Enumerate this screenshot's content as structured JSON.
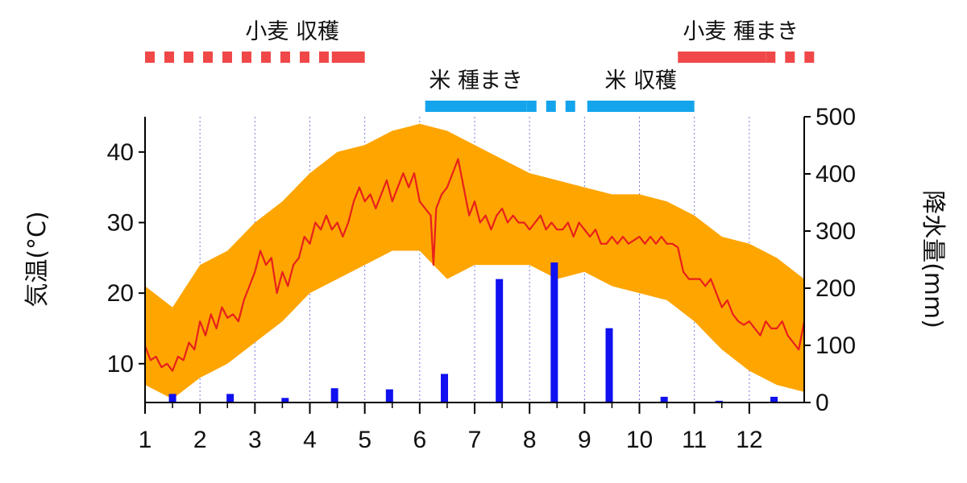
{
  "chart_data": {
    "type": "line",
    "x_categories": [
      "1",
      "2",
      "3",
      "4",
      "5",
      "6",
      "7",
      "8",
      "9",
      "10",
      "11",
      "12"
    ],
    "xlim": [
      1,
      13
    ],
    "y_left": {
      "label": "気温(°C)",
      "ticks": [
        10,
        20,
        30,
        40
      ],
      "ylim": [
        4.5,
        45
      ]
    },
    "y_right": {
      "label": "降水量(mm)",
      "ticks": [
        0,
        100,
        200,
        300,
        400,
        500
      ],
      "ylim": [
        0,
        500
      ]
    },
    "grid": {
      "vertical_dotted_at_months": true
    },
    "colors": {
      "temperature": "#e8201c",
      "range": "#ffa500",
      "precipitation": "#1010f0",
      "wheat": "#f04848",
      "rice": "#14a4ec"
    },
    "series": [
      {
        "type": "line",
        "temperature_mean": [
          [
            1,
            12.5
          ],
          [
            1.1,
            10.5
          ],
          [
            1.2,
            11
          ],
          [
            1.3,
            9.5
          ],
          [
            1.4,
            10
          ],
          [
            1.5,
            9
          ],
          [
            1.6,
            11
          ],
          [
            1.7,
            10.5
          ],
          [
            1.8,
            13
          ],
          [
            1.9,
            12
          ],
          [
            2,
            16
          ],
          [
            2.1,
            14
          ],
          [
            2.2,
            17
          ],
          [
            2.3,
            15
          ],
          [
            2.4,
            18
          ],
          [
            2.5,
            16.5
          ],
          [
            2.6,
            17
          ],
          [
            2.7,
            16
          ],
          [
            2.8,
            19
          ],
          [
            2.9,
            21
          ],
          [
            3,
            23
          ],
          [
            3.1,
            26
          ],
          [
            3.2,
            24
          ],
          [
            3.3,
            25
          ],
          [
            3.4,
            20
          ],
          [
            3.5,
            23
          ],
          [
            3.6,
            21
          ],
          [
            3.7,
            24
          ],
          [
            3.8,
            25
          ],
          [
            3.9,
            28
          ],
          [
            4,
            27
          ],
          [
            4.1,
            30
          ],
          [
            4.2,
            29
          ],
          [
            4.3,
            31
          ],
          [
            4.4,
            29
          ],
          [
            4.5,
            30
          ],
          [
            4.6,
            28
          ],
          [
            4.7,
            30
          ],
          [
            4.8,
            33
          ],
          [
            4.9,
            35
          ],
          [
            5,
            33
          ],
          [
            5.1,
            34
          ],
          [
            5.2,
            32
          ],
          [
            5.3,
            34
          ],
          [
            5.4,
            36
          ],
          [
            5.5,
            33
          ],
          [
            5.6,
            35
          ],
          [
            5.7,
            37
          ],
          [
            5.8,
            35
          ],
          [
            5.9,
            37
          ],
          [
            6,
            33
          ],
          [
            6.1,
            32
          ],
          [
            6.2,
            31
          ],
          [
            6.25,
            24
          ],
          [
            6.3,
            32
          ],
          [
            6.4,
            34
          ],
          [
            6.5,
            35
          ],
          [
            6.6,
            37
          ],
          [
            6.7,
            39
          ],
          [
            6.8,
            35
          ],
          [
            6.9,
            31
          ],
          [
            7,
            33
          ],
          [
            7.1,
            30
          ],
          [
            7.2,
            31
          ],
          [
            7.3,
            29
          ],
          [
            7.4,
            31
          ],
          [
            7.5,
            32
          ],
          [
            7.6,
            30
          ],
          [
            7.7,
            31
          ],
          [
            7.8,
            30
          ],
          [
            7.9,
            30
          ],
          [
            8,
            29
          ],
          [
            8.1,
            30
          ],
          [
            8.2,
            31
          ],
          [
            8.3,
            29
          ],
          [
            8.4,
            30
          ],
          [
            8.5,
            29
          ],
          [
            8.6,
            29
          ],
          [
            8.7,
            30
          ],
          [
            8.8,
            28
          ],
          [
            8.9,
            30
          ],
          [
            9,
            29
          ],
          [
            9.1,
            28
          ],
          [
            9.2,
            29
          ],
          [
            9.3,
            27
          ],
          [
            9.4,
            27
          ],
          [
            9.5,
            28
          ],
          [
            9.6,
            27
          ],
          [
            9.7,
            28
          ],
          [
            9.8,
            27
          ],
          [
            9.9,
            27.5
          ],
          [
            10,
            28
          ],
          [
            10.1,
            27
          ],
          [
            10.2,
            28
          ],
          [
            10.3,
            27
          ],
          [
            10.4,
            28
          ],
          [
            10.5,
            27
          ],
          [
            10.6,
            27
          ],
          [
            10.7,
            26.5
          ],
          [
            10.8,
            23
          ],
          [
            10.9,
            22
          ],
          [
            11,
            22
          ],
          [
            11.1,
            22
          ],
          [
            11.2,
            21
          ],
          [
            11.3,
            22
          ],
          [
            11.4,
            20
          ],
          [
            11.5,
            18
          ],
          [
            11.6,
            19
          ],
          [
            11.7,
            17
          ],
          [
            11.8,
            16
          ],
          [
            11.9,
            15.5
          ],
          [
            12,
            16
          ],
          [
            12.1,
            15
          ],
          [
            12.2,
            14
          ],
          [
            12.3,
            16
          ],
          [
            12.4,
            15
          ],
          [
            12.5,
            15
          ],
          [
            12.6,
            16
          ],
          [
            12.7,
            14
          ],
          [
            12.8,
            13
          ],
          [
            12.9,
            12
          ],
          [
            13,
            16
          ]
        ],
        "temperature_max": [
          [
            1,
            21
          ],
          [
            1.5,
            18
          ],
          [
            2,
            24
          ],
          [
            2.5,
            26
          ],
          [
            3,
            30
          ],
          [
            3.5,
            33
          ],
          [
            4,
            37
          ],
          [
            4.5,
            40
          ],
          [
            5,
            41
          ],
          [
            5.5,
            43
          ],
          [
            6,
            44
          ],
          [
            6.5,
            43
          ],
          [
            7,
            41
          ],
          [
            7.5,
            39
          ],
          [
            8,
            37
          ],
          [
            8.5,
            36
          ],
          [
            9,
            35
          ],
          [
            9.5,
            34
          ],
          [
            10,
            34
          ],
          [
            10.5,
            33
          ],
          [
            11,
            31
          ],
          [
            11.5,
            28
          ],
          [
            12,
            27
          ],
          [
            12.5,
            25
          ],
          [
            13,
            22
          ]
        ],
        "temperature_min": [
          [
            1,
            7
          ],
          [
            1.5,
            5
          ],
          [
            2,
            8
          ],
          [
            2.5,
            10
          ],
          [
            3,
            13
          ],
          [
            3.5,
            16
          ],
          [
            4,
            20
          ],
          [
            4.5,
            22
          ],
          [
            5,
            24
          ],
          [
            5.5,
            26
          ],
          [
            6,
            26
          ],
          [
            6.5,
            22
          ],
          [
            7,
            24
          ],
          [
            7.5,
            24
          ],
          [
            8,
            24
          ],
          [
            8.5,
            22
          ],
          [
            9,
            23
          ],
          [
            9.5,
            21
          ],
          [
            10,
            20
          ],
          [
            10.5,
            19
          ],
          [
            11,
            16
          ],
          [
            11.5,
            12
          ],
          [
            12,
            9
          ],
          [
            12.5,
            7
          ],
          [
            13,
            6
          ]
        ]
      },
      {
        "type": "bar",
        "precipitation": [
          [
            1.5,
            15
          ],
          [
            2.55,
            15
          ],
          [
            3.55,
            8
          ],
          [
            4.45,
            25
          ],
          [
            5.45,
            23
          ],
          [
            6.45,
            50
          ],
          [
            7.45,
            216
          ],
          [
            8.45,
            245
          ],
          [
            9.45,
            130
          ],
          [
            10.45,
            10
          ],
          [
            11.45,
            3
          ],
          [
            12.45,
            10
          ]
        ]
      }
    ],
    "activities": [
      {
        "label": "小麦 収穫",
        "crop": "wheat",
        "dashed": [
          1,
          4.4
        ],
        "solid": [
          4.4,
          5
        ]
      },
      {
        "label": "米 種まき",
        "crop": "rice",
        "solid": [
          6.1,
          7.95
        ],
        "dashed": [
          7.95,
          8.9
        ]
      },
      {
        "label": "米 収穫",
        "crop": "rice",
        "solid": [
          9.05,
          11
        ]
      },
      {
        "label": "小麦 種まき",
        "crop": "wheat",
        "solid": [
          10.7,
          12.3
        ],
        "dashed": [
          12.3,
          13.2
        ]
      }
    ]
  }
}
